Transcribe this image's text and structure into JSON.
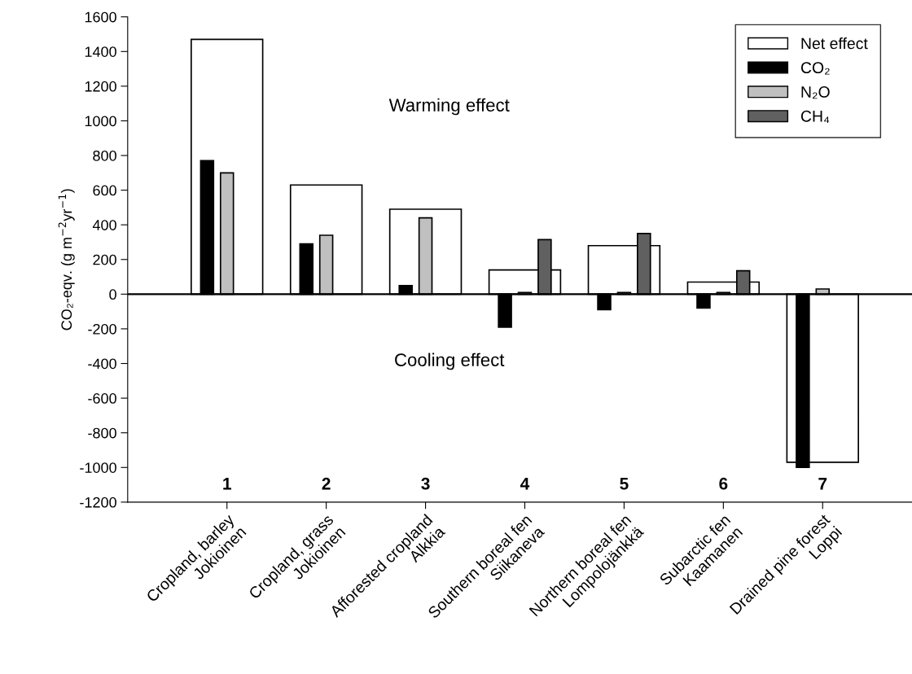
{
  "chart_data": {
    "type": "bar",
    "ylabel": "CO₂-eqv. (g m$^{−2}$yr$^{−1}$)",
    "categories": [
      "Cropland, barley\nJokioinen",
      "Cropland, grass\nJokioinen",
      "Afforested cropland\nAlkkia",
      "Southern boreal fen\nSiikaneva",
      "Northern boreal fen\nLompolojänkkä",
      "Subarctic fen\nKaamanen",
      "Drained pine forest\nLoppi"
    ],
    "series": [
      {
        "name": "Net effect",
        "color": "#ffffff",
        "values": [
          1470,
          630,
          490,
          140,
          280,
          70,
          -970
        ]
      },
      {
        "name": "CO₂",
        "color": "#000000",
        "values": [
          770,
          290,
          50,
          -190,
          -90,
          -80,
          -1000
        ]
      },
      {
        "name": "N₂O",
        "color": "#c0c0c0",
        "values": [
          700,
          340,
          440,
          10,
          10,
          10,
          30
        ]
      },
      {
        "name": "CH₄",
        "color": "#606060",
        "values": [
          null,
          null,
          null,
          315,
          350,
          135,
          null
        ]
      }
    ],
    "ylim": [
      -1200,
      1600
    ],
    "yticks": [
      -1200,
      -1000,
      -800,
      -600,
      -400,
      -200,
      0,
      200,
      400,
      600,
      800,
      1000,
      1200,
      1400,
      1600
    ],
    "ref_lines": [
      {
        "axis": "y",
        "value": 0,
        "color": "#000000"
      }
    ],
    "annotations": [
      "Warming effect",
      "Cooling effect",
      "1",
      "2",
      "3",
      "4",
      "5",
      "6",
      "7"
    ],
    "grid": false,
    "legend": "top right"
  }
}
